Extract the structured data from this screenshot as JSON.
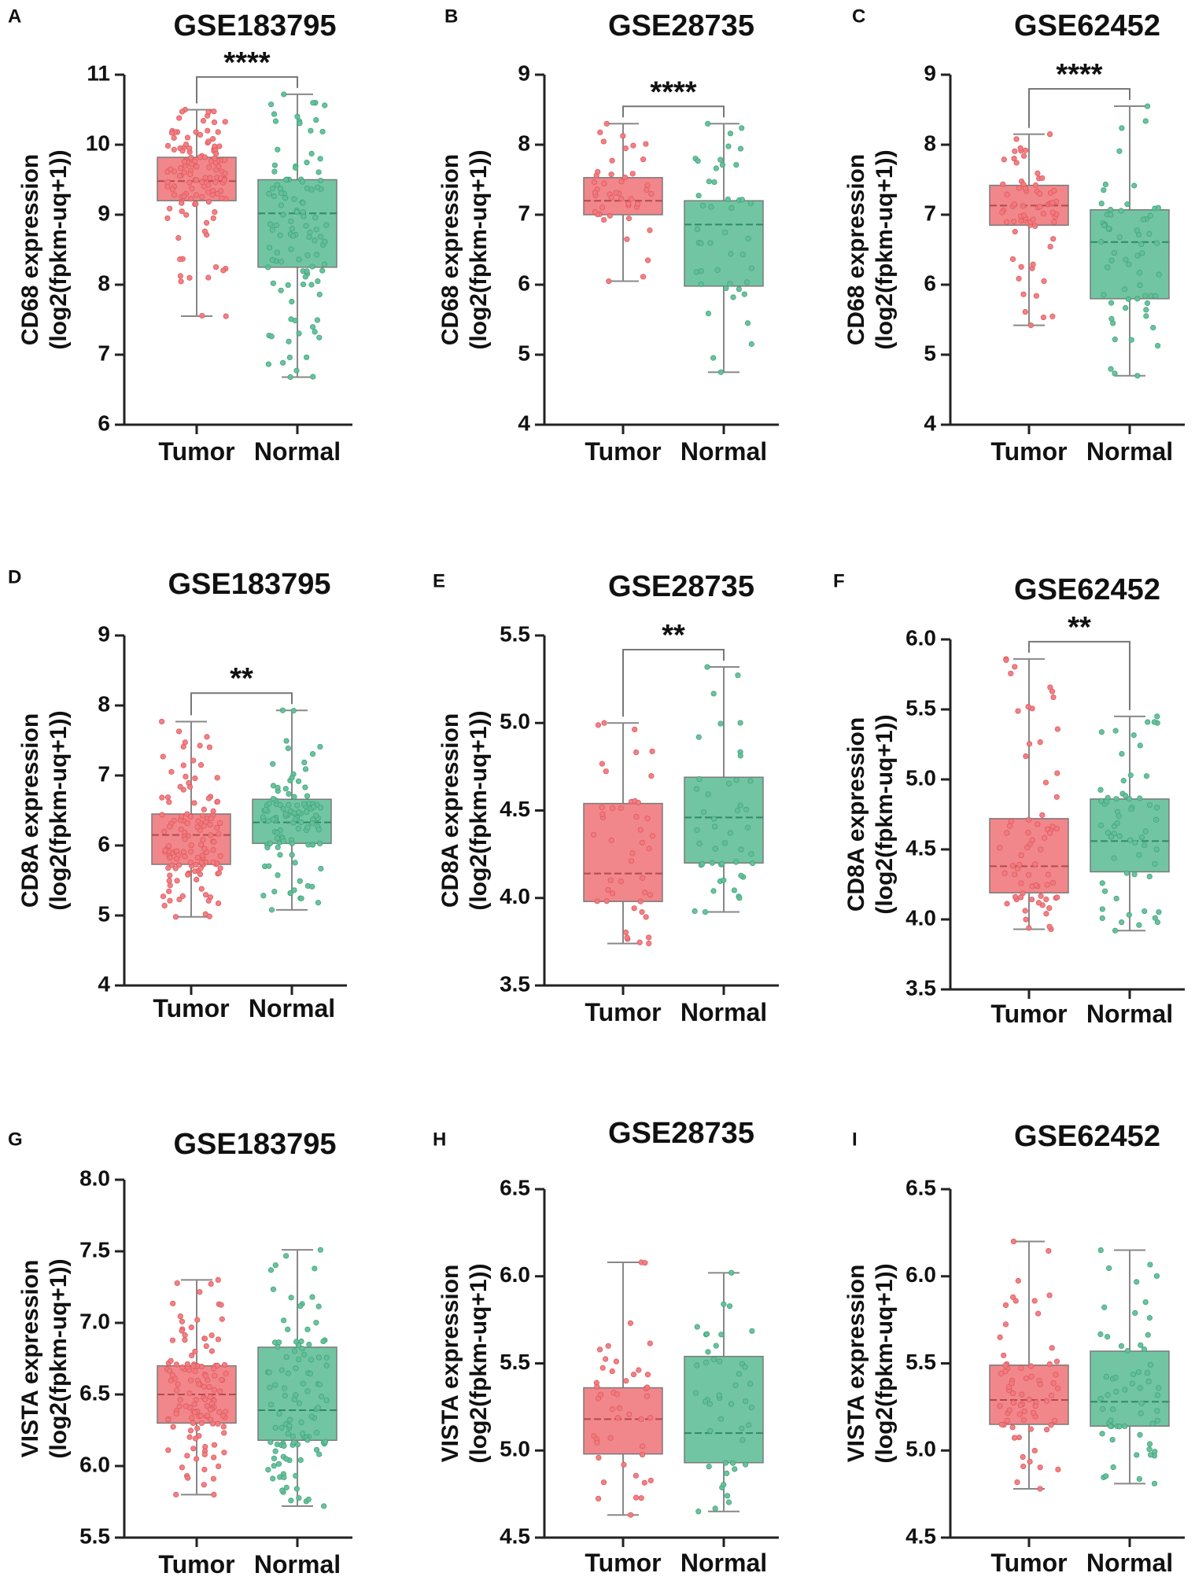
{
  "colors": {
    "tumor": "#f07a7e",
    "normal": "#63bf99",
    "axis": "#222222",
    "bracket": "#777777"
  },
  "chart_data": [
    {
      "type": "box",
      "panel": "A",
      "title": "GSE183795",
      "ylabel_line1": "CD68 expression",
      "ylabel_line2": "(log2(fpkm-uq+1))",
      "categories": [
        "Tumor",
        "Normal"
      ],
      "ylim": [
        6,
        11
      ],
      "yticks": [
        6,
        7,
        8,
        9,
        10,
        11
      ],
      "significance": "****",
      "boxes": [
        {
          "name": "Tumor",
          "min": 7.55,
          "q1": 9.2,
          "median": 9.48,
          "q3": 9.82,
          "max": 10.5,
          "n_points": 130
        },
        {
          "name": "Normal",
          "min": 6.68,
          "q1": 8.25,
          "median": 9.02,
          "q3": 9.5,
          "max": 10.72,
          "n_points": 110
        }
      ]
    },
    {
      "type": "box",
      "panel": "B",
      "title": "GSE28735",
      "ylabel_line1": "CD68 expression",
      "ylabel_line2": "(log2(fpkm-uq+1))",
      "categories": [
        "Tumor",
        "Normal"
      ],
      "ylim": [
        4,
        9
      ],
      "yticks": [
        4,
        5,
        6,
        7,
        8,
        9
      ],
      "significance": "****",
      "boxes": [
        {
          "name": "Tumor",
          "min": 6.05,
          "q1": 7.0,
          "median": 7.2,
          "q3": 7.53,
          "max": 8.3,
          "n_points": 45
        },
        {
          "name": "Normal",
          "min": 4.75,
          "q1": 5.98,
          "median": 6.86,
          "q3": 7.2,
          "max": 8.3,
          "n_points": 45
        }
      ]
    },
    {
      "type": "box",
      "panel": "C",
      "title": "GSE62452",
      "ylabel_line1": "CD68 expression",
      "ylabel_line2": "(log2(fpkm-uq+1))",
      "categories": [
        "Tumor",
        "Normal"
      ],
      "ylim": [
        4,
        9
      ],
      "yticks": [
        4,
        5,
        6,
        7,
        8,
        9
      ],
      "significance": "****",
      "boxes": [
        {
          "name": "Tumor",
          "min": 5.42,
          "q1": 6.85,
          "median": 7.13,
          "q3": 7.42,
          "max": 8.15,
          "n_points": 69
        },
        {
          "name": "Normal",
          "min": 4.7,
          "q1": 5.8,
          "median": 6.61,
          "q3": 7.07,
          "max": 8.55,
          "n_points": 61
        }
      ]
    },
    {
      "type": "box",
      "panel": "D",
      "title": "GSE183795",
      "ylabel_line1": "CD8A expression",
      "ylabel_line2": "(log2(fpkm-uq+1))",
      "categories": [
        "Tumor",
        "Normal"
      ],
      "ylim": [
        4,
        9
      ],
      "yticks": [
        4,
        5,
        6,
        7,
        8,
        9
      ],
      "significance": "**",
      "boxes": [
        {
          "name": "Tumor",
          "min": 4.98,
          "q1": 5.73,
          "median": 6.15,
          "q3": 6.45,
          "max": 7.77,
          "n_points": 130
        },
        {
          "name": "Normal",
          "min": 5.08,
          "q1": 6.03,
          "median": 6.33,
          "q3": 6.66,
          "max": 7.93,
          "n_points": 110
        }
      ]
    },
    {
      "type": "box",
      "panel": "E",
      "title": "GSE28735",
      "ylabel_line1": "CD8A expression",
      "ylabel_line2": "(log2(fpkm-uq+1))",
      "categories": [
        "Tumor",
        "Normal"
      ],
      "ylim": [
        3.5,
        5.5
      ],
      "yticks": [
        3.5,
        4.0,
        4.5,
        5.0,
        5.5
      ],
      "significance": "**",
      "boxes": [
        {
          "name": "Tumor",
          "min": 3.74,
          "q1": 3.98,
          "median": 4.14,
          "q3": 4.54,
          "max": 5.0,
          "n_points": 45
        },
        {
          "name": "Normal",
          "min": 3.92,
          "q1": 4.2,
          "median": 4.46,
          "q3": 4.69,
          "max": 5.32,
          "n_points": 45
        }
      ]
    },
    {
      "type": "box",
      "panel": "F",
      "title": "GSE62452",
      "ylabel_line1": "CD8A expression",
      "ylabel_line2": "(log2(fpkm-uq+1))",
      "categories": [
        "Tumor",
        "Normal"
      ],
      "ylim": [
        3.5,
        6.0
      ],
      "yticks": [
        3.5,
        4.0,
        4.5,
        5.0,
        5.5,
        6.0
      ],
      "significance": "**",
      "boxes": [
        {
          "name": "Tumor",
          "min": 3.93,
          "q1": 4.19,
          "median": 4.38,
          "q3": 4.72,
          "max": 5.86,
          "n_points": 69
        },
        {
          "name": "Normal",
          "min": 3.92,
          "q1": 4.34,
          "median": 4.56,
          "q3": 4.86,
          "max": 5.45,
          "n_points": 61
        }
      ]
    },
    {
      "type": "box",
      "panel": "G",
      "title": "GSE183795",
      "ylabel_line1": "VISTA expression",
      "ylabel_line2": "(log2(fpkm-uq+1))",
      "categories": [
        "Tumor",
        "Normal"
      ],
      "ylim": [
        5.5,
        8.0
      ],
      "yticks": [
        5.5,
        6.0,
        6.5,
        7.0,
        7.5,
        8.0
      ],
      "significance": "",
      "boxes": [
        {
          "name": "Tumor",
          "min": 5.8,
          "q1": 6.3,
          "median": 6.5,
          "q3": 6.7,
          "max": 7.3,
          "n_points": 130
        },
        {
          "name": "Normal",
          "min": 5.72,
          "q1": 6.18,
          "median": 6.39,
          "q3": 6.83,
          "max": 7.51,
          "n_points": 110
        }
      ]
    },
    {
      "type": "box",
      "panel": "H",
      "title": "GSE28735",
      "ylabel_line1": "VISTA expression",
      "ylabel_line2": "(log2(fpkm-uq+1))",
      "categories": [
        "Tumor",
        "Normal"
      ],
      "ylim": [
        4.5,
        6.5
      ],
      "yticks": [
        4.5,
        5.0,
        5.5,
        6.0,
        6.5
      ],
      "significance": "",
      "boxes": [
        {
          "name": "Tumor",
          "min": 4.63,
          "q1": 4.98,
          "median": 5.18,
          "q3": 5.36,
          "max": 6.08,
          "n_points": 45
        },
        {
          "name": "Normal",
          "min": 4.65,
          "q1": 4.93,
          "median": 5.1,
          "q3": 5.54,
          "max": 6.02,
          "n_points": 45
        }
      ]
    },
    {
      "type": "box",
      "panel": "I",
      "title": "GSE62452",
      "ylabel_line1": "VISTA expression",
      "ylabel_line2": "(log2(fpkm-uq+1))",
      "categories": [
        "Tumor",
        "Normal"
      ],
      "ylim": [
        4.5,
        6.5
      ],
      "yticks": [
        4.5,
        5.0,
        5.5,
        6.0,
        6.5
      ],
      "significance": "",
      "boxes": [
        {
          "name": "Tumor",
          "min": 4.78,
          "q1": 5.15,
          "median": 5.29,
          "q3": 5.49,
          "max": 6.2,
          "n_points": 69
        },
        {
          "name": "Normal",
          "min": 4.81,
          "q1": 5.14,
          "median": 5.28,
          "q3": 5.57,
          "max": 6.15,
          "n_points": 61
        }
      ]
    }
  ]
}
